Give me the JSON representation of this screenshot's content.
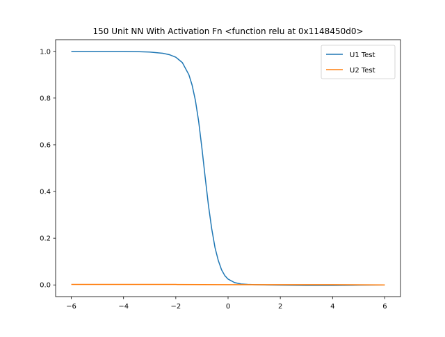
{
  "chart_data": {
    "type": "line",
    "title": "150 Unit NN With Activation Fn <function relu at 0x1148450d0>",
    "xlabel": "",
    "ylabel": "",
    "xlim": [
      -6.6,
      6.6
    ],
    "ylim": [
      -0.05,
      1.05
    ],
    "xticks": [
      -6,
      -4,
      -2,
      0,
      2,
      4,
      6
    ],
    "xtick_labels": [
      "−6",
      "−4",
      "−2",
      "0",
      "2",
      "4",
      "6"
    ],
    "yticks": [
      0.0,
      0.2,
      0.4,
      0.6,
      0.8,
      1.0
    ],
    "ytick_labels": [
      "0.0",
      "0.2",
      "0.4",
      "0.6",
      "0.8",
      "1.0"
    ],
    "grid": false,
    "legend_position": "top-right",
    "series": [
      {
        "name": "U1 Test",
        "color": "#1f77b4",
        "x": [
          -6,
          -5,
          -4,
          -3.5,
          -3,
          -2.5,
          -2.25,
          -2,
          -1.75,
          -1.5,
          -1.375,
          -1.25,
          -1.125,
          -1,
          -0.875,
          -0.75,
          -0.625,
          -0.5,
          -0.375,
          -0.25,
          -0.125,
          0,
          0.25,
          0.5,
          0.75,
          1,
          1.5,
          2,
          3,
          4,
          5,
          6
        ],
        "y": [
          1.0,
          1.0,
          1.0,
          0.999,
          0.997,
          0.992,
          0.986,
          0.975,
          0.952,
          0.9,
          0.855,
          0.79,
          0.7,
          0.585,
          0.46,
          0.34,
          0.24,
          0.16,
          0.105,
          0.065,
          0.04,
          0.025,
          0.01,
          0.004,
          0.002,
          0.001,
          0.0,
          -0.001,
          -0.002,
          -0.002,
          -0.001,
          0.0
        ]
      },
      {
        "name": "U2 Test",
        "color": "#ff7f0e",
        "x": [
          -6,
          -4,
          -2,
          0,
          2,
          4,
          6
        ],
        "y": [
          0.002,
          0.002,
          0.002,
          0.001,
          0.001,
          0.001,
          0.0
        ]
      }
    ]
  }
}
